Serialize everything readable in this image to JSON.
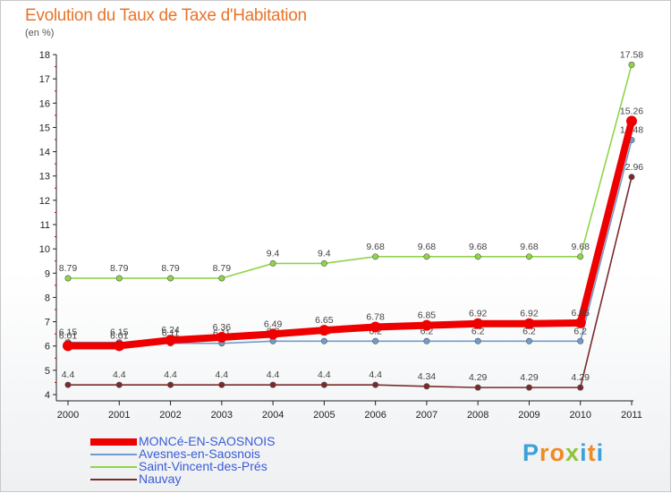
{
  "title": "Evolution du Taux de Taxe d'Habitation",
  "subtitle": "(en %)",
  "logo": {
    "letters": [
      "P",
      "r",
      "o",
      "x",
      "i",
      "t",
      "i"
    ],
    "colors": [
      "#3da0d8",
      "#f08a24",
      "#f08a24",
      "#8fc43d",
      "#3da0d8",
      "#f08a24",
      "#3da0d8"
    ]
  },
  "chart_data": {
    "type": "line",
    "title": "Evolution du Taux de Taxe d'Habitation",
    "ylabel": "(en %)",
    "xlabel": "",
    "ylim": [
      4,
      18
    ],
    "yticks": [
      4,
      5,
      6,
      7,
      8,
      9,
      10,
      11,
      12,
      13,
      14,
      15,
      16,
      17,
      18
    ],
    "grid": false,
    "categories": [
      "2000",
      "2001",
      "2002",
      "2003",
      "2004",
      "2005",
      "2006",
      "2007",
      "2008",
      "2009",
      "2010",
      "2011"
    ],
    "series": [
      {
        "name": "Saint-Vincent-des-Prés",
        "color": "#8fd44a",
        "values": [
          8.79,
          8.79,
          8.79,
          8.79,
          9.4,
          9.4,
          9.68,
          9.68,
          9.68,
          9.68,
          9.68,
          17.58
        ],
        "labels": [
          "8.79",
          "8.79",
          "8.79",
          "8.79",
          "9.4",
          "9.4",
          "9.68",
          "9.68",
          "9.68",
          "9.68",
          "9.68",
          "17.58"
        ]
      },
      {
        "name": "Nauvay",
        "color": "#7a2a2a",
        "values": [
          4.4,
          4.4,
          4.4,
          4.4,
          4.4,
          4.4,
          4.4,
          4.34,
          4.29,
          4.29,
          4.29,
          12.96
        ],
        "labels": [
          "4.4",
          "4.4",
          "4.4",
          "4.4",
          "4.4",
          "4.4",
          "4.4",
          "4.34",
          "4.29",
          "4.29",
          "4.29",
          "12.96"
        ]
      },
      {
        "name": "Avesnes-en-Saosnois",
        "color": "#6f9ccc",
        "values": [
          6.15,
          6.15,
          6.11,
          6.11,
          6.2,
          6.2,
          6.2,
          6.2,
          6.2,
          6.2,
          6.2,
          14.48
        ],
        "labels": [
          "6.15",
          "6.15",
          "6.11",
          "6.11",
          "6.2",
          "6.2",
          "6.2",
          "6.2",
          "6.2",
          "6.2",
          "6.2",
          "14.48"
        ]
      },
      {
        "name": "MONCé-EN-SAOSNOIS",
        "color": "#ee0000",
        "values": [
          6.01,
          6.01,
          6.24,
          6.36,
          6.49,
          6.65,
          6.78,
          6.85,
          6.92,
          6.92,
          6.95,
          15.26
        ],
        "labels": [
          "6.01",
          "6.01",
          "6.24",
          "6.36",
          "6.49",
          "6.65",
          "6.78",
          "6.85",
          "6.92",
          "6.92",
          "6.95",
          "15.26"
        ]
      }
    ],
    "legend": [
      "MONCé-EN-SAOSNOIS",
      "Avesnes-en-Saosnois",
      "Saint-Vincent-des-Prés",
      "Nauvay"
    ],
    "legend_position": "bottom-left"
  }
}
